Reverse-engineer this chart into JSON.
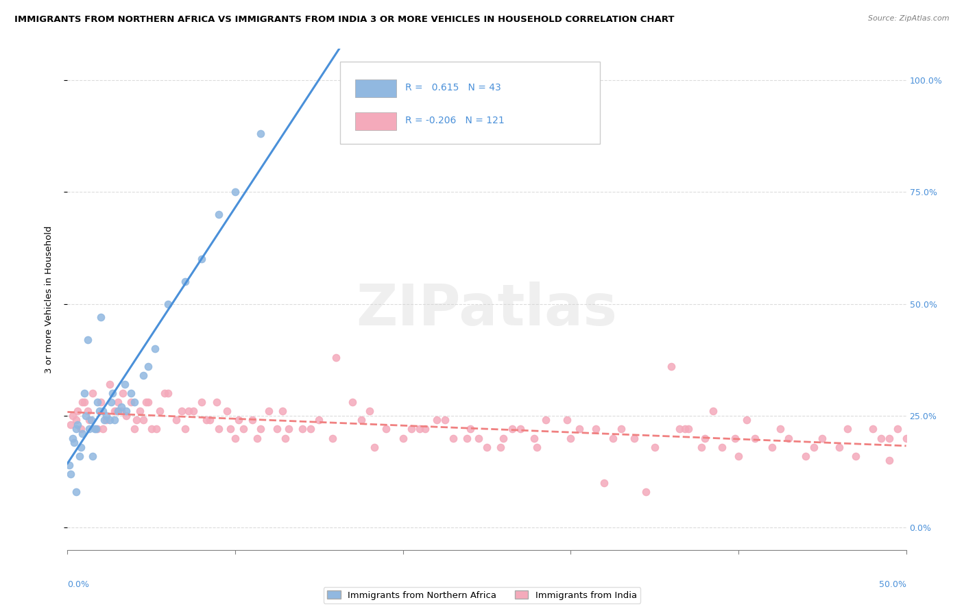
{
  "title": "IMMIGRANTS FROM NORTHERN AFRICA VS IMMIGRANTS FROM INDIA 3 OR MORE VEHICLES IN HOUSEHOLD CORRELATION CHART",
  "source": "Source: ZipAtlas.com",
  "ylabel": "3 or more Vehicles in Household",
  "blue_R": 0.615,
  "blue_N": 43,
  "pink_R": -0.206,
  "pink_N": 121,
  "blue_color": "#91B8E0",
  "pink_color": "#F4AABB",
  "blue_line_color": "#4A90D9",
  "pink_line_color": "#F08080",
  "watermark": "ZIPatlas",
  "blue_scatter_x": [
    0.5,
    1.2,
    1.8,
    2.1,
    2.5,
    0.3,
    0.8,
    1.5,
    2.8,
    3.2,
    0.6,
    1.0,
    1.7,
    2.3,
    3.5,
    0.4,
    0.9,
    1.4,
    2.0,
    4.0,
    0.2,
    1.1,
    1.6,
    2.6,
    3.8,
    0.7,
    1.3,
    2.2,
    3.0,
    4.5,
    0.1,
    0.5,
    1.9,
    2.7,
    3.4,
    4.8,
    5.2,
    6.0,
    7.0,
    8.0,
    9.0,
    10.0,
    11.5
  ],
  "blue_scatter_y": [
    22,
    42,
    28,
    26,
    24,
    20,
    18,
    16,
    24,
    27,
    23,
    30,
    22,
    25,
    26,
    19,
    21,
    24,
    47,
    28,
    12,
    25,
    22,
    28,
    30,
    16,
    22,
    24,
    26,
    34,
    14,
    8,
    26,
    30,
    32,
    36,
    40,
    50,
    55,
    60,
    70,
    75,
    88
  ],
  "pink_scatter_x": [
    0.3,
    0.5,
    0.8,
    1.0,
    1.2,
    1.5,
    1.8,
    2.0,
    2.3,
    2.5,
    2.8,
    3.0,
    3.3,
    3.5,
    3.8,
    4.0,
    4.3,
    4.5,
    4.8,
    5.0,
    5.5,
    6.0,
    6.5,
    7.0,
    7.5,
    8.0,
    8.5,
    9.0,
    9.5,
    10.0,
    10.5,
    11.0,
    11.5,
    12.0,
    12.5,
    13.0,
    14.0,
    15.0,
    16.0,
    17.0,
    18.0,
    19.0,
    20.0,
    21.0,
    22.0,
    23.0,
    24.0,
    25.0,
    26.0,
    27.0,
    28.0,
    30.0,
    32.0,
    33.0,
    35.0,
    36.0,
    37.0,
    38.0,
    39.0,
    40.0,
    41.0,
    42.0,
    43.0,
    44.0,
    45.0,
    46.0,
    47.0,
    48.0,
    49.0,
    49.5,
    0.2,
    0.6,
    1.3,
    2.1,
    3.2,
    4.7,
    5.8,
    7.2,
    8.9,
    10.2,
    12.8,
    14.5,
    17.5,
    20.5,
    22.5,
    24.5,
    26.5,
    28.5,
    30.5,
    32.5,
    34.5,
    36.5,
    38.5,
    40.5,
    42.5,
    44.5,
    46.5,
    48.5,
    0.9,
    2.9,
    4.1,
    5.3,
    6.8,
    8.3,
    9.7,
    11.3,
    13.2,
    15.8,
    18.3,
    21.3,
    23.8,
    25.8,
    27.8,
    29.8,
    31.5,
    33.8,
    36.8,
    37.8,
    39.8,
    49.0,
    50.0
  ],
  "pink_scatter_y": [
    25,
    24,
    22,
    28,
    26,
    30,
    22,
    28,
    24,
    32,
    26,
    28,
    30,
    25,
    28,
    22,
    26,
    24,
    28,
    22,
    26,
    30,
    24,
    22,
    26,
    28,
    24,
    22,
    26,
    20,
    22,
    24,
    22,
    26,
    22,
    20,
    22,
    24,
    38,
    28,
    26,
    22,
    20,
    22,
    24,
    20,
    22,
    18,
    20,
    22,
    18,
    20,
    10,
    22,
    18,
    36,
    22,
    20,
    18,
    16,
    20,
    18,
    20,
    16,
    20,
    18,
    16,
    22,
    20,
    22,
    23,
    26,
    24,
    22,
    26,
    28,
    30,
    26,
    28,
    24,
    26,
    22,
    24,
    22,
    24,
    20,
    22,
    24,
    22,
    20,
    8,
    22,
    26,
    24,
    22,
    18,
    22,
    20,
    28,
    26,
    24,
    22,
    26,
    24,
    22,
    20,
    22,
    20,
    18,
    22,
    20,
    18,
    20,
    24,
    22,
    20,
    22,
    18,
    20,
    15,
    20
  ]
}
